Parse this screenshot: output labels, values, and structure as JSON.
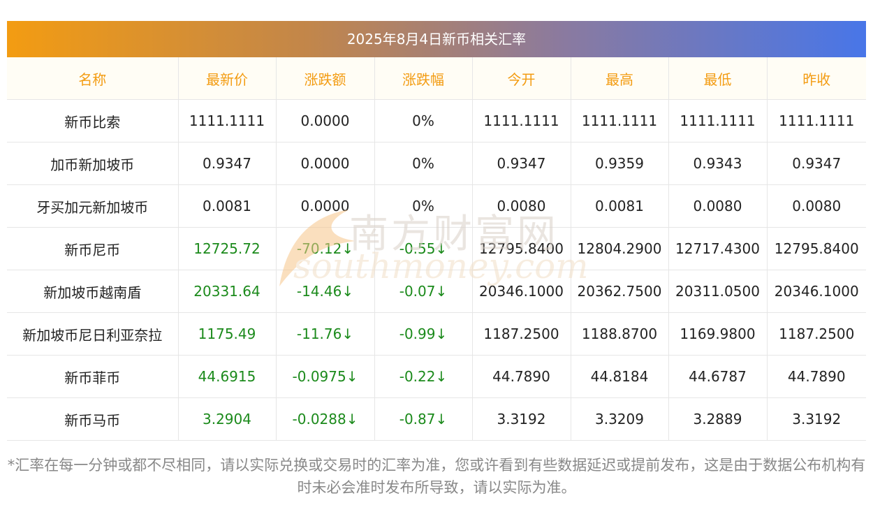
{
  "title": "2025年8月4日新币相关汇率",
  "headers": [
    "名称",
    "最新价",
    "涨跌额",
    "涨跌幅",
    "今开",
    "最高",
    "最低",
    "昨收"
  ],
  "rows": [
    {
      "name": "新币比索",
      "latest": "1111.1111",
      "change": "0.0000",
      "pct": "0%",
      "open": "1111.1111",
      "high": "1111.1111",
      "low": "1111.1111",
      "prev": "1111.1111",
      "trend": "flat"
    },
    {
      "name": "加币新加坡币",
      "latest": "0.9347",
      "change": "0.0000",
      "pct": "0%",
      "open": "0.9347",
      "high": "0.9359",
      "low": "0.9343",
      "prev": "0.9347",
      "trend": "flat"
    },
    {
      "name": "牙买加元新加坡币",
      "latest": "0.0081",
      "change": "0.0000",
      "pct": "0%",
      "open": "0.0080",
      "high": "0.0081",
      "low": "0.0080",
      "prev": "0.0080",
      "trend": "flat"
    },
    {
      "name": "新币尼币",
      "latest": "12725.72",
      "change": "-70.12↓",
      "pct": "-0.55↓",
      "open": "12795.8400",
      "high": "12804.2900",
      "low": "12717.4300",
      "prev": "12795.8400",
      "trend": "down"
    },
    {
      "name": "新加坡币越南盾",
      "latest": "20331.64",
      "change": "-14.46↓",
      "pct": "-0.07↓",
      "open": "20346.1000",
      "high": "20362.7500",
      "low": "20311.0500",
      "prev": "20346.1000",
      "trend": "down"
    },
    {
      "name": "新加坡币尼日利亚奈拉",
      "latest": "1175.49",
      "change": "-11.76↓",
      "pct": "-0.99↓",
      "open": "1187.2500",
      "high": "1188.8700",
      "low": "1169.9800",
      "prev": "1187.2500",
      "trend": "down"
    },
    {
      "name": "新币菲币",
      "latest": "44.6915",
      "change": "-0.0975↓",
      "pct": "-0.22↓",
      "open": "44.7890",
      "high": "44.8184",
      "low": "44.6787",
      "prev": "44.7890",
      "trend": "down"
    },
    {
      "name": "新币马币",
      "latest": "3.2904",
      "change": "-0.0288↓",
      "pct": "-0.87↓",
      "open": "3.3192",
      "high": "3.3209",
      "low": "3.2889",
      "prev": "3.3192",
      "trend": "down"
    }
  ],
  "footer": "*汇率在每一分钟或都不尽相同，请以实际兑换或交易时的汇率为准，您或许看到有些数据延迟或提前发布，这是由于数据公布机构有时未必会准时发布所导致，请以实际为准。",
  "watermark": {
    "cn": "南方财富网",
    "en": "southmoney.com"
  },
  "colors": {
    "header_text": "#f39c12",
    "down": "#1b8a1b",
    "gradient_start": "#f39c12",
    "gradient_end": "#4876e8"
  }
}
